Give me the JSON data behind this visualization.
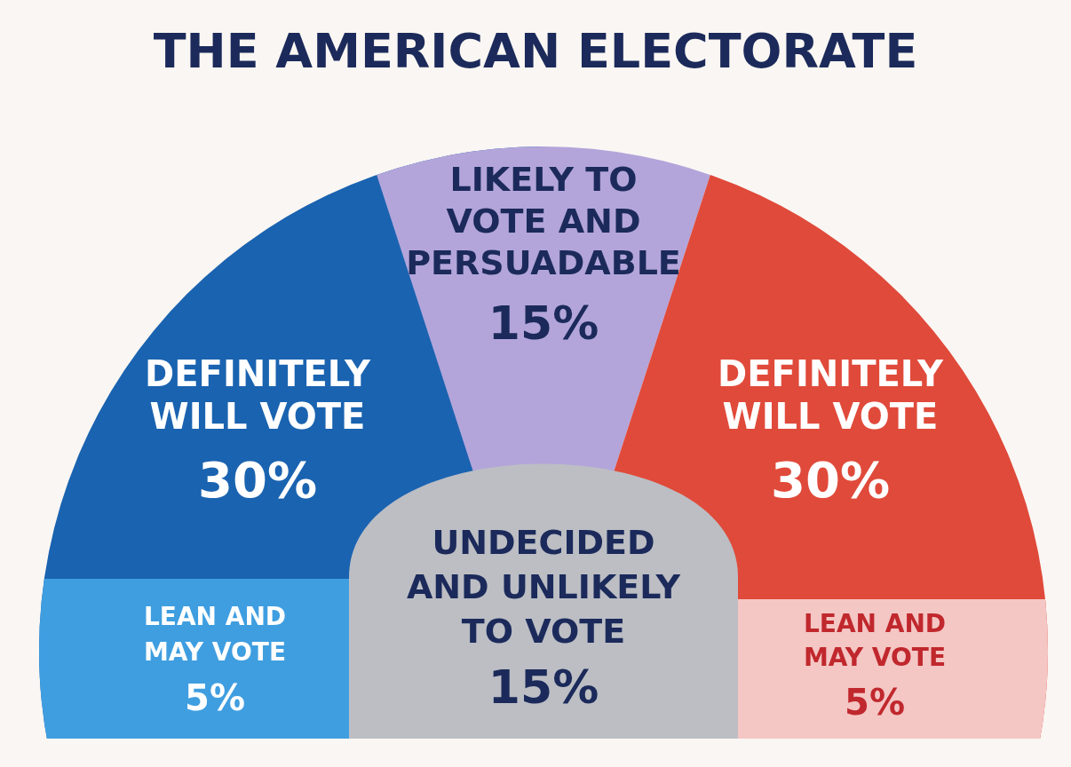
{
  "chart_data": {
    "type": "other",
    "title": "THE AMERICAN ELECTORATE",
    "categories": [
      "DEFINITELY\nWILL VOTE",
      "LIKELY TO\nVOTE AND\nPERSUADABLE",
      "DEFINITELY\nWILL VOTE",
      "LEAN AND\nMAY VOTE",
      "UNDECIDED\nAND UNLIKELY\nTO VOTE",
      "LEAN AND\nMAY VOTE"
    ],
    "values": [
      30,
      15,
      30,
      5,
      15,
      5
    ],
    "value_labels": [
      "30%",
      "15%",
      "30%",
      "5%",
      "15%",
      "5%"
    ],
    "colors": [
      "#1a63b0",
      "#b3a5da",
      "#e04a3a",
      "#3f9ee0",
      "#bcbec4",
      "#f4c6c4"
    ]
  }
}
